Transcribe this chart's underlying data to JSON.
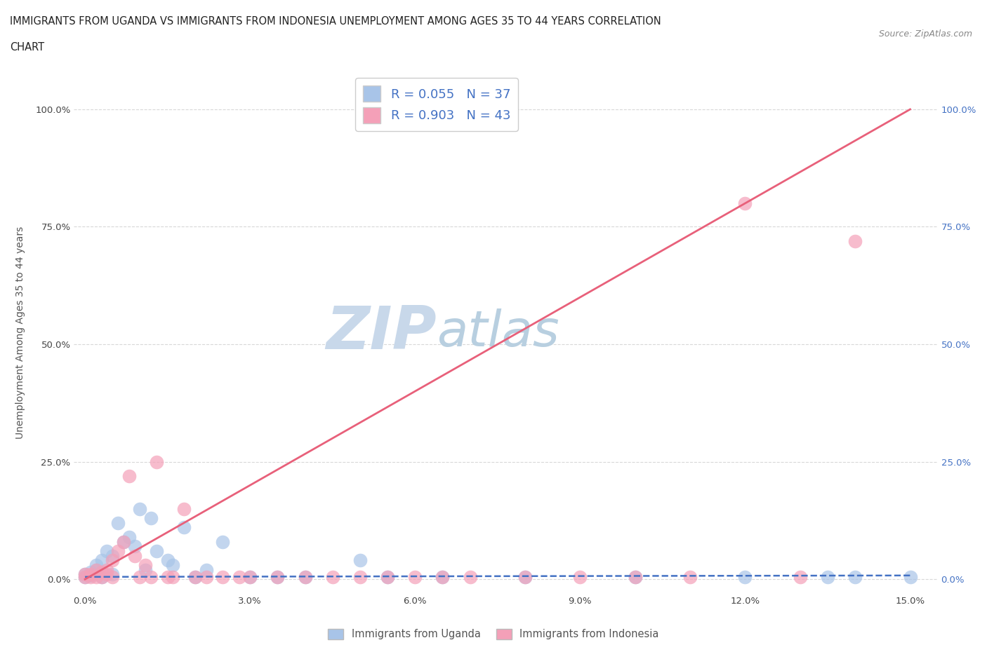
{
  "title_line1": "IMMIGRANTS FROM UGANDA VS IMMIGRANTS FROM INDONESIA UNEMPLOYMENT AMONG AGES 35 TO 44 YEARS CORRELATION",
  "title_line2": "CHART",
  "source_text": "Source: ZipAtlas.com",
  "ylabel": "Unemployment Among Ages 35 to 44 years",
  "xlim": [
    -0.002,
    0.155
  ],
  "ylim": [
    -0.03,
    1.08
  ],
  "xticks": [
    0.0,
    0.03,
    0.06,
    0.09,
    0.12,
    0.15
  ],
  "xticklabels": [
    "0.0%",
    "3.0%",
    "6.0%",
    "9.0%",
    "12.0%",
    "15.0%"
  ],
  "yticks": [
    0.0,
    0.25,
    0.5,
    0.75,
    1.0
  ],
  "yticklabels_left": [
    "0.0%",
    "25.0%",
    "50.0%",
    "75.0%",
    "100.0%"
  ],
  "yticklabels_right": [
    "0.0%",
    "25.0%",
    "50.0%",
    "75.0%",
    "100.0%"
  ],
  "uganda_color": "#a8c4e8",
  "indonesia_color": "#f4a0b8",
  "uganda_line_color": "#4472c4",
  "indonesia_line_color": "#e8607a",
  "legend_label1": "R = 0.055   N = 37",
  "legend_label2": "R = 0.903   N = 43",
  "watermark_zip": "ZIP",
  "watermark_atlas": "atlas",
  "watermark_color_zip": "#c8d8ea",
  "watermark_color_atlas": "#b8cfe0",
  "uganda_scatter_x": [
    0.0,
    0.0,
    0.001,
    0.001,
    0.002,
    0.002,
    0.003,
    0.003,
    0.004,
    0.005,
    0.005,
    0.006,
    0.007,
    0.008,
    0.009,
    0.01,
    0.011,
    0.012,
    0.013,
    0.015,
    0.016,
    0.018,
    0.02,
    0.022,
    0.025,
    0.03,
    0.035,
    0.04,
    0.05,
    0.055,
    0.065,
    0.08,
    0.1,
    0.12,
    0.135,
    0.14,
    0.15
  ],
  "uganda_scatter_y": [
    0.005,
    0.01,
    0.008,
    0.015,
    0.02,
    0.03,
    0.005,
    0.04,
    0.06,
    0.01,
    0.05,
    0.12,
    0.08,
    0.09,
    0.07,
    0.15,
    0.02,
    0.13,
    0.06,
    0.04,
    0.03,
    0.11,
    0.005,
    0.02,
    0.08,
    0.005,
    0.005,
    0.005,
    0.04,
    0.005,
    0.005,
    0.005,
    0.005,
    0.005,
    0.005,
    0.005,
    0.005
  ],
  "indonesia_scatter_x": [
    0.0,
    0.0,
    0.001,
    0.001,
    0.002,
    0.002,
    0.003,
    0.003,
    0.004,
    0.004,
    0.005,
    0.005,
    0.006,
    0.007,
    0.008,
    0.009,
    0.01,
    0.011,
    0.012,
    0.013,
    0.015,
    0.016,
    0.018,
    0.02,
    0.022,
    0.025,
    0.028,
    0.03,
    0.035,
    0.04,
    0.045,
    0.05,
    0.055,
    0.06,
    0.065,
    0.07,
    0.08,
    0.09,
    0.1,
    0.11,
    0.12,
    0.13,
    0.14
  ],
  "indonesia_scatter_y": [
    0.005,
    0.01,
    0.005,
    0.01,
    0.005,
    0.02,
    0.005,
    0.015,
    0.01,
    0.02,
    0.005,
    0.04,
    0.06,
    0.08,
    0.22,
    0.05,
    0.005,
    0.03,
    0.005,
    0.25,
    0.005,
    0.005,
    0.15,
    0.005,
    0.005,
    0.005,
    0.005,
    0.005,
    0.005,
    0.005,
    0.005,
    0.005,
    0.005,
    0.005,
    0.005,
    0.005,
    0.005,
    0.005,
    0.005,
    0.005,
    0.8,
    0.005,
    0.72
  ],
  "indonesia_regline_x": [
    0.0,
    0.15
  ],
  "indonesia_regline_y": [
    0.0,
    1.0
  ],
  "uganda_regline_x": [
    0.0,
    0.15
  ],
  "uganda_regline_y": [
    0.005,
    0.008
  ],
  "background_color": "#ffffff",
  "grid_color": "#d8d8d8",
  "bottom_legend1": "Immigrants from Uganda",
  "bottom_legend2": "Immigrants from Indonesia"
}
